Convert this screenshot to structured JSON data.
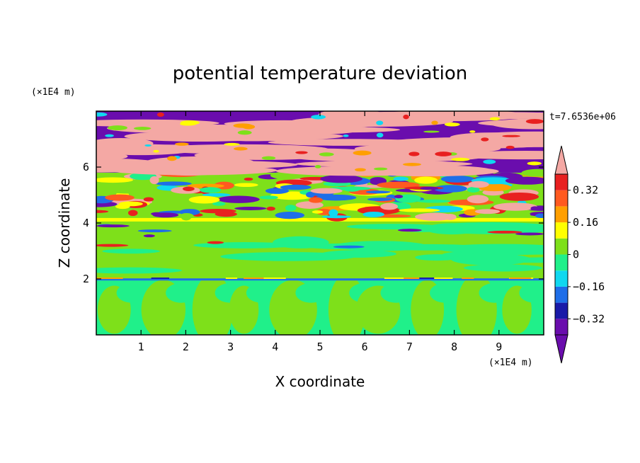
{
  "chart_data": {
    "type": "heatmap",
    "title": "potential temperature deviation",
    "xlabel": "X coordinate",
    "ylabel": "Z coordinate",
    "x_unit": "(×1E4 m)",
    "y_unit": "(×1E4 m)",
    "time_label": "t=7.6536e+06",
    "xlim": [
      0,
      10
    ],
    "ylim": [
      0,
      8
    ],
    "x_ticks": [
      1,
      2,
      3,
      4,
      5,
      6,
      7,
      8,
      9
    ],
    "y_ticks": [
      2,
      4,
      6
    ],
    "grid": false,
    "colorbar": {
      "placement": "right",
      "levels": [
        -0.4,
        -0.32,
        -0.24,
        -0.16,
        -0.08,
        0,
        0.08,
        0.16,
        0.24,
        0.32,
        0.4
      ],
      "tick_labels": [
        "0.32",
        "0.16",
        "0",
        "−0.16",
        "−0.32"
      ],
      "colors_low_to_high": [
        "#6a0dad",
        "#1a1aa8",
        "#1f6ee8",
        "#10d8f0",
        "#20f08a",
        "#7ee01a",
        "#ffff00",
        "#ff9f00",
        "#ff5a20",
        "#e82020",
        "#f4a8a4"
      ],
      "under_color": "#6a0dad",
      "over_color": "#f4a8a4"
    },
    "bands": [
      {
        "z_range": [
          0,
          2
        ],
        "dominant_value": 0.04,
        "description_colors": [
          "#20f08a",
          "#7ee01a"
        ]
      },
      {
        "z_range": [
          2,
          4.1
        ],
        "dominant_value": 0.04,
        "description_colors": [
          "#7ee01a",
          "#20f08a"
        ]
      },
      {
        "z_range": [
          4.1,
          5.8
        ],
        "dominant_value": 0.0,
        "description_colors": [
          "#ff5a20",
          "#ffff00",
          "#6a0dad",
          "#7ee01a"
        ]
      },
      {
        "z_range": [
          5.8,
          8
        ],
        "dominant_value": 0.4,
        "description_colors": [
          "#f4a8a4",
          "#6a0dad"
        ]
      }
    ]
  }
}
